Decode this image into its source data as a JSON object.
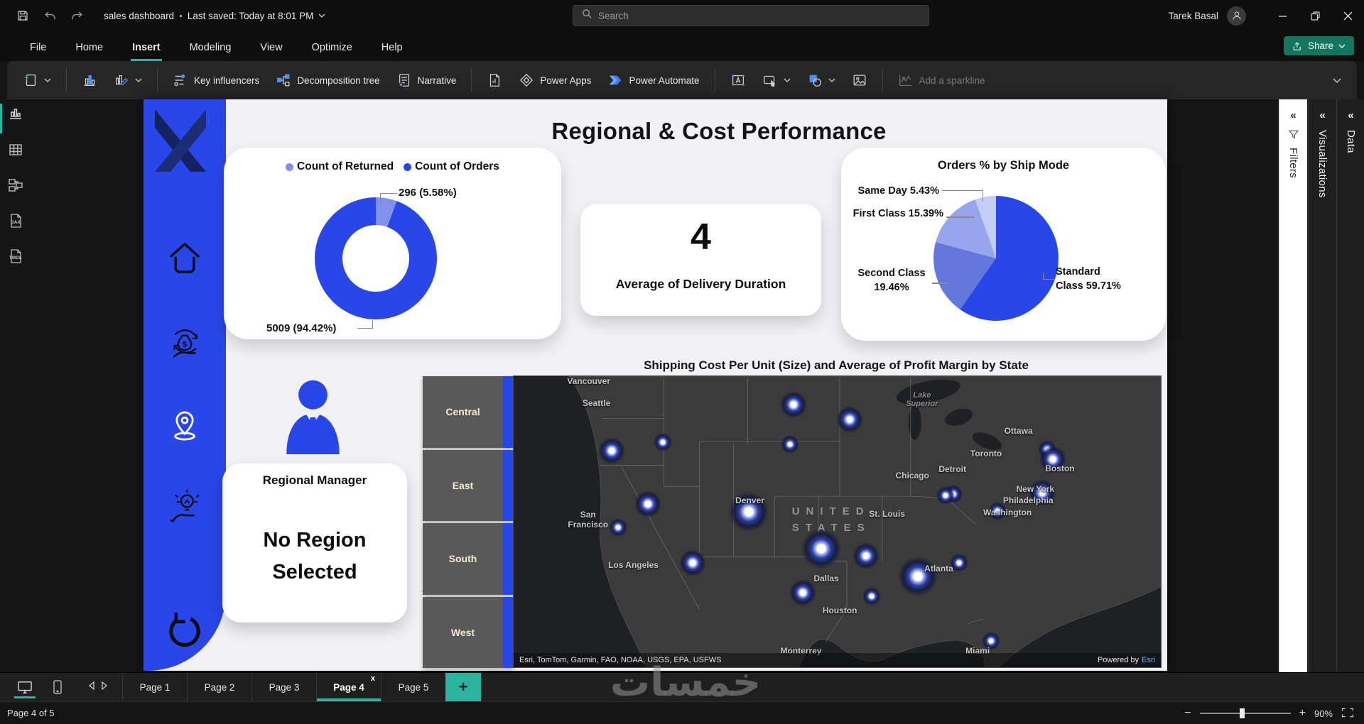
{
  "titlebar": {
    "document_title": "sales dashboard",
    "separator": "•",
    "last_saved": "Last saved: Today at 8:01 PM",
    "search_placeholder": "Search",
    "user_name": "Tarek Basal"
  },
  "menubar": {
    "items": [
      "File",
      "Home",
      "Insert",
      "Modeling",
      "View",
      "Optimize",
      "Help"
    ],
    "active_item": "Insert",
    "share_label": "Share"
  },
  "ribbon": {
    "key_influencers": "Key influencers",
    "decomposition_tree": "Decomposition tree",
    "narrative": "Narrative",
    "power_apps": "Power Apps",
    "power_automate": "Power Automate",
    "add_sparkline": "Add a sparkline"
  },
  "side_panes": {
    "filters": "Filters",
    "visualizations": "Visualizations",
    "data": "Data"
  },
  "report": {
    "title": "Regional & Cost Performance",
    "donut": {
      "legend": [
        {
          "label": "Count of Returned",
          "color": "#8190E9"
        },
        {
          "label": "Count of Orders",
          "color": "#2946E8"
        }
      ],
      "callout_returned": "296 (5.58%)",
      "callout_orders": "5009 (94.42%)"
    },
    "kpi": {
      "value": "4",
      "label": "Average of Delivery Duration"
    },
    "pie": {
      "title": "Orders % by Ship Mode",
      "labels": [
        "Same Day 5.43%",
        "First Class 15.39%",
        "Second Class 19.46%",
        "Standard Class 59.71%"
      ]
    },
    "map": {
      "title": "Shipping Cost Per Unit (Size) and Average of Profit Margin by State",
      "attribution": "Esri, TomTom, Garmin, FAO, NOAA, USGS, EPA, USFWS",
      "powered_by": "Powered by",
      "powered_by_brand": "Esri",
      "country_line1": "UNITED",
      "country_line2": "STATES"
    },
    "region_buttons": [
      "Central",
      "East",
      "South",
      "West"
    ],
    "manager": {
      "role": "Regional Manager",
      "status_line1": "No Region",
      "status_line2": "Selected"
    }
  },
  "tabbar": {
    "pages": [
      "Page 1",
      "Page 2",
      "Page 3",
      "Page 4",
      "Page 5"
    ],
    "active_page": "Page 4",
    "close_glyph": "x",
    "add_glyph": "+"
  },
  "statusbar": {
    "page_indicator": "Page 4 of 5",
    "zoom_value": "90%"
  },
  "watermark": "خمسات",
  "colors": {
    "accent_teal": "#2BB5A0",
    "share_green": "#12765F",
    "brand_blue": "#2946E8",
    "donut_light": "#8190E9",
    "pie_standard": "#2946E8",
    "pie_second": "#6377DD",
    "pie_first": "#97A5EC",
    "pie_same_day": "#C4CDF5"
  },
  "chart_data": [
    {
      "id": "returned_vs_orders_donut",
      "type": "pie",
      "subtype": "donut",
      "legend_position": "top",
      "slices": [
        {
          "label": "Count of Returned",
          "value": 296,
          "pct": 5.58,
          "color": "#8190E9"
        },
        {
          "label": "Count of Orders",
          "value": 5009,
          "pct": 94.42,
          "color": "#2946E8"
        }
      ]
    },
    {
      "id": "delivery_duration_card",
      "type": "table",
      "value": 4,
      "label": "Average of Delivery Duration"
    },
    {
      "id": "ship_mode_pie",
      "type": "pie",
      "title": "Orders % by Ship Mode",
      "slices": [
        {
          "label": "Standard Class",
          "pct": 59.71,
          "color": "#2946E8"
        },
        {
          "label": "Second Class",
          "pct": 19.46,
          "color": "#6377DD"
        },
        {
          "label": "First Class",
          "pct": 15.39,
          "color": "#97A5EC"
        },
        {
          "label": "Same Day",
          "pct": 5.43,
          "color": "#C4CDF5"
        }
      ]
    },
    {
      "id": "shipping_cost_map",
      "type": "scatter",
      "subtype": "map-bubbles",
      "title": "Shipping Cost Per Unit (Size) and Average of Profit Margin by State",
      "cities": [
        {
          "name": "Vancouver",
          "x": 11.6,
          "y": 1.8
        },
        {
          "name": "Seattle",
          "x": 12.8,
          "y": 9.2
        },
        {
          "name": "San Francisco",
          "x": 11.5,
          "y": 49.5,
          "wrap": true
        },
        {
          "name": "Los Angeles",
          "x": 18.5,
          "y": 64.8
        },
        {
          "name": "Denver",
          "x": 36.5,
          "y": 42.7
        },
        {
          "name": "Dallas",
          "x": 48.3,
          "y": 69.4
        },
        {
          "name": "Houston",
          "x": 50.4,
          "y": 80.6
        },
        {
          "name": "Monterrey",
          "x": 44.4,
          "y": 94.5
        },
        {
          "name": "St. Louis",
          "x": 57.7,
          "y": 47.3
        },
        {
          "name": "Chicago",
          "x": 61.6,
          "y": 34.2
        },
        {
          "name": "Detroit",
          "x": 67.8,
          "y": 32.0
        },
        {
          "name": "Toronto",
          "x": 73.0,
          "y": 26.5
        },
        {
          "name": "Ottawa",
          "x": 78.0,
          "y": 18.7
        },
        {
          "name": "Boston",
          "x": 84.4,
          "y": 31.8
        },
        {
          "name": "New York",
          "x": 80.6,
          "y": 38.8
        },
        {
          "name": "Philadelphia",
          "x": 79.5,
          "y": 42.6
        },
        {
          "name": "Washington",
          "x": 76.3,
          "y": 46.8
        },
        {
          "name": "Atlanta",
          "x": 65.7,
          "y": 66.0
        },
        {
          "name": "Miami",
          "x": 71.7,
          "y": 94.5
        },
        {
          "name": "Lake Superior",
          "x": 63.1,
          "y": 8.0,
          "italic": true
        }
      ],
      "bubbles": [
        {
          "x": 43.3,
          "y": 9.7,
          "size": "m"
        },
        {
          "x": 51.9,
          "y": 14.8,
          "size": "m"
        },
        {
          "x": 15.2,
          "y": 25.5,
          "size": "m"
        },
        {
          "x": 23.1,
          "y": 22.6,
          "size": "s"
        },
        {
          "x": 42.7,
          "y": 23.5,
          "size": "s"
        },
        {
          "x": 68.0,
          "y": 40.5,
          "size": "s"
        },
        {
          "x": 82.4,
          "y": 25.0,
          "size": "s"
        },
        {
          "x": 83.3,
          "y": 28.6,
          "size": "m"
        },
        {
          "x": 20.7,
          "y": 43.9,
          "size": "m"
        },
        {
          "x": 16.1,
          "y": 51.9,
          "size": "s"
        },
        {
          "x": 27.7,
          "y": 64.2,
          "size": "m"
        },
        {
          "x": 36.3,
          "y": 46.6,
          "size": "l"
        },
        {
          "x": 47.5,
          "y": 59.2,
          "size": "l"
        },
        {
          "x": 54.4,
          "y": 61.8,
          "size": "m"
        },
        {
          "x": 44.7,
          "y": 74.3,
          "size": "m"
        },
        {
          "x": 55.3,
          "y": 75.7,
          "size": "s"
        },
        {
          "x": 62.5,
          "y": 68.9,
          "size": "l"
        },
        {
          "x": 68.8,
          "y": 64.2,
          "size": "s"
        },
        {
          "x": 74.7,
          "y": 46.4,
          "size": "s"
        },
        {
          "x": 66.7,
          "y": 41.0,
          "size": "s"
        },
        {
          "x": 81.7,
          "y": 40.0,
          "size": "m"
        },
        {
          "x": 73.8,
          "y": 91.0,
          "size": "s"
        }
      ]
    }
  ]
}
